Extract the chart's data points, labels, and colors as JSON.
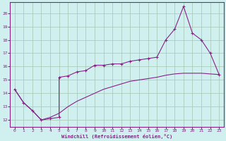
{
  "xlabel": "Windchill (Refroidissement éolien,°C)",
  "background_color": "#cff0ee",
  "grid_color": "#aaccbb",
  "line_color": "#882288",
  "xlim": [
    -0.5,
    23.5
  ],
  "ylim": [
    11.5,
    20.8
  ],
  "yticks": [
    12,
    13,
    14,
    15,
    16,
    17,
    18,
    19,
    20
  ],
  "xticks": [
    0,
    1,
    2,
    3,
    4,
    5,
    6,
    7,
    8,
    9,
    10,
    11,
    12,
    13,
    14,
    15,
    16,
    17,
    18,
    19,
    20,
    21,
    22,
    23
  ],
  "line1_x": [
    0,
    1,
    2,
    3,
    4,
    5,
    5,
    6,
    7,
    8,
    9,
    10,
    11,
    12,
    13,
    14,
    15,
    16,
    17,
    18,
    19,
    20,
    21,
    22,
    23
  ],
  "line1_y": [
    14.3,
    13.3,
    12.7,
    12.0,
    12.1,
    12.2,
    15.2,
    15.3,
    15.6,
    15.7,
    16.1,
    16.1,
    16.2,
    16.2,
    16.4,
    16.5,
    16.6,
    16.7,
    18.0,
    18.8,
    20.5,
    18.5,
    18.0,
    17.0,
    15.4
  ],
  "line2_x": [
    0,
    1,
    2,
    3,
    4,
    5,
    6,
    7,
    8,
    9,
    10,
    11,
    12,
    13,
    14,
    15,
    16,
    17,
    18,
    19,
    20,
    21,
    22,
    23
  ],
  "line2_y": [
    14.3,
    13.3,
    12.7,
    12.0,
    12.2,
    12.5,
    13.0,
    13.4,
    13.7,
    14.0,
    14.3,
    14.5,
    14.7,
    14.9,
    15.0,
    15.1,
    15.2,
    15.35,
    15.45,
    15.5,
    15.5,
    15.5,
    15.45,
    15.4
  ],
  "line3_x": [
    0,
    23
  ],
  "line3_y": [
    14.3,
    15.4
  ],
  "marker_x": [
    0,
    1,
    2,
    3,
    4,
    5,
    6,
    7,
    8,
    9,
    10,
    11,
    12,
    13,
    14,
    15,
    16,
    17,
    18,
    19,
    20,
    21,
    22,
    23
  ],
  "marker_y": [
    14.3,
    13.3,
    12.7,
    12.0,
    12.1,
    15.2,
    15.3,
    15.6,
    15.7,
    16.1,
    16.1,
    16.2,
    16.2,
    16.4,
    16.5,
    16.6,
    16.7,
    18.0,
    18.8,
    20.5,
    18.5,
    18.0,
    17.0,
    15.4
  ]
}
